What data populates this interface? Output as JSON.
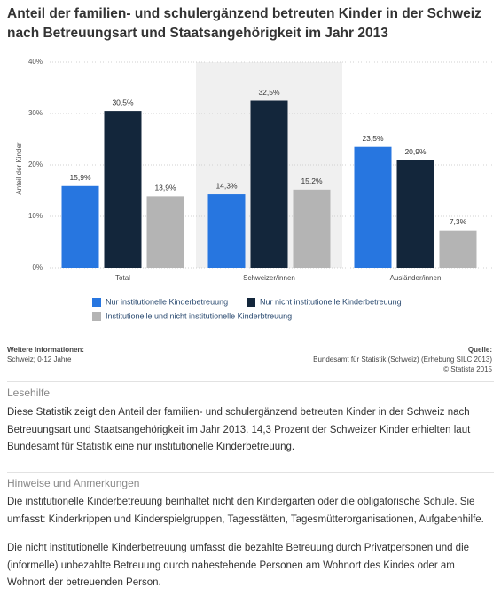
{
  "chart_data": {
    "type": "bar",
    "title": "Anteil der familien- und schulergänzend betreuten Kinder in der Schweiz nach Betreuungsart und Staatsangehörigkeit im Jahr 2013",
    "y_label": "Anteil der Kinder",
    "categories": [
      "Total",
      "Schweizer/innen",
      "Ausländer/innen"
    ],
    "series": [
      {
        "name": "Nur institutionelle Kinderbetreuung",
        "color": "#2776e0",
        "values": [
          15.9,
          14.3,
          23.5
        ],
        "value_labels": [
          "15,9%",
          "14,3%",
          "23,5%"
        ]
      },
      {
        "name": "Nur nicht institutionelle Kinderbetreuung",
        "color": "#13263b",
        "values": [
          30.5,
          32.5,
          20.9
        ],
        "value_labels": [
          "30,5%",
          "32,5%",
          "20,9%"
        ]
      },
      {
        "name": "Institutionelle und nicht institutionelle Kinderbtreuung",
        "color": "#b4b4b4",
        "values": [
          13.9,
          15.2,
          7.3
        ],
        "value_labels": [
          "13,9%",
          "15,2%",
          "7,3%"
        ]
      }
    ],
    "ylim": [
      0,
      40
    ],
    "yticks": [
      {
        "value": 0,
        "label": "0%"
      },
      {
        "value": 10,
        "label": "10%"
      },
      {
        "value": 20,
        "label": "20%"
      },
      {
        "value": 30,
        "label": "30%"
      },
      {
        "value": 40,
        "label": "40%"
      }
    ],
    "grid": true
  },
  "info": {
    "heading": "Weitere Informationen:",
    "text": "Schweiz; 0-12 Jahre"
  },
  "source": {
    "heading": "Quelle:",
    "text": "Bundesamt für Statistik (Schweiz) (Erhebung SILC 2013)",
    "copyright": "© Statista 2015"
  },
  "lesehilfe": {
    "heading": "Lesehilfe",
    "text": "Diese Statistik zeigt den Anteil der familien- und schulergänzend betreuten Kinder in der Schweiz nach Betreuungsart und Staatsangehörigkeit im Jahr 2013. 14,3 Prozent der Schweizer Kinder erhielten laut Bundesamt für Statistik eine nur institutionelle Kinderbetreuung."
  },
  "hinweise": {
    "heading": "Hinweise und Anmerkungen",
    "paragraphs": [
      "Die institutionelle Kinderbetreuung beinhaltet nicht den Kindergarten oder die obligatorische Schule. Sie umfasst: Kinderkrippen und Kinderspielgruppen, Tagesstätten, Tagesmütterorganisationen, Aufgabenhilfe.",
      "Die nicht institutionelle Kinderbetreuung umfasst die bezahlte Betreuung durch Privatpersonen und die (informelle) unbezahlte Betreuung durch nahestehende Personen am Wohnort des Kindes oder am Wohnort der betreuenden Person."
    ]
  }
}
